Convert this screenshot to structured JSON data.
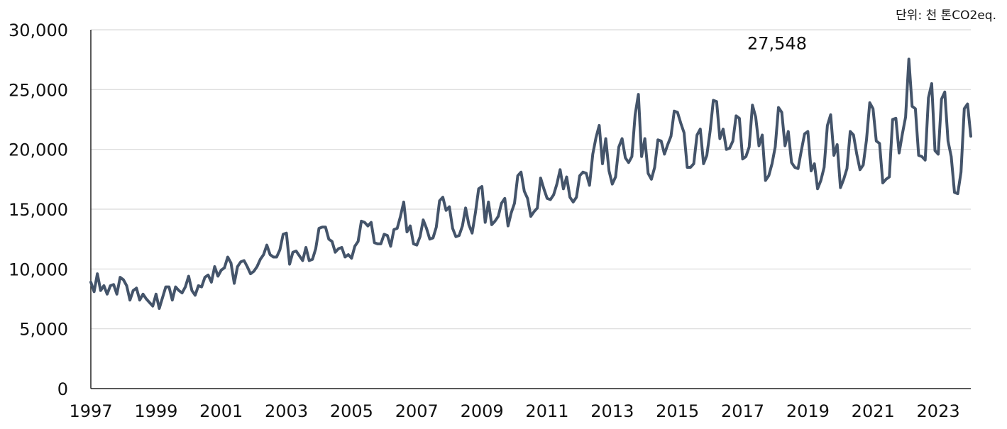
{
  "unit_text": "단위: 천 톤CO2eq.",
  "colors": {
    "line": "#44546a",
    "grid": "#d9d9d9",
    "axis": "#222222",
    "text": "#111111"
  },
  "chart_data": {
    "type": "line",
    "title": "",
    "xlabel": "",
    "ylabel": "",
    "xlim": [
      1997,
      2024
    ],
    "ylim": [
      0,
      30000
    ],
    "grid": true,
    "legend": "none",
    "y_ticks": [
      {
        "value": 0,
        "label": "0"
      },
      {
        "value": 5000,
        "label": "5,000"
      },
      {
        "value": 10000,
        "label": "10,000"
      },
      {
        "value": 15000,
        "label": "15,000"
      },
      {
        "value": 20000,
        "label": "20,000"
      },
      {
        "value": 25000,
        "label": "25,000"
      },
      {
        "value": 30000,
        "label": "30,000"
      }
    ],
    "x_ticks": [
      {
        "value": 1997,
        "label": "1997"
      },
      {
        "value": 1999,
        "label": "1999"
      },
      {
        "value": 2001,
        "label": "2001"
      },
      {
        "value": 2003,
        "label": "2003"
      },
      {
        "value": 2005,
        "label": "2005"
      },
      {
        "value": 2007,
        "label": "2007"
      },
      {
        "value": 2009,
        "label": "2009"
      },
      {
        "value": 2011,
        "label": "2011"
      },
      {
        "value": 2013,
        "label": "2013"
      },
      {
        "value": 2015,
        "label": "2015"
      },
      {
        "value": 2017,
        "label": "2017"
      },
      {
        "value": 2019,
        "label": "2019"
      },
      {
        "value": 2021,
        "label": "2021"
      },
      {
        "value": 2023,
        "label": "2023"
      }
    ],
    "annotation": {
      "x": 2018.0,
      "y": 27548,
      "label": "27,548"
    },
    "series": [
      {
        "color": "#44546a",
        "points": [
          [
            1997.0,
            8900
          ],
          [
            1997.1,
            8100
          ],
          [
            1997.2,
            9600
          ],
          [
            1997.3,
            8200
          ],
          [
            1997.4,
            8600
          ],
          [
            1997.5,
            7900
          ],
          [
            1997.6,
            8600
          ],
          [
            1997.7,
            8700
          ],
          [
            1997.8,
            7900
          ],
          [
            1997.9,
            9300
          ],
          [
            1998.0,
            9100
          ],
          [
            1998.1,
            8600
          ],
          [
            1998.2,
            7400
          ],
          [
            1998.3,
            8200
          ],
          [
            1998.4,
            8400
          ],
          [
            1998.5,
            7400
          ],
          [
            1998.6,
            7900
          ],
          [
            1998.7,
            7500
          ],
          [
            1998.8,
            7200
          ],
          [
            1998.9,
            6900
          ],
          [
            1999.0,
            7900
          ],
          [
            1999.1,
            6700
          ],
          [
            1999.2,
            7600
          ],
          [
            1999.3,
            8500
          ],
          [
            1999.4,
            8500
          ],
          [
            1999.5,
            7400
          ],
          [
            1999.6,
            8500
          ],
          [
            1999.7,
            8200
          ],
          [
            1999.8,
            8000
          ],
          [
            1999.9,
            8500
          ],
          [
            2000.0,
            9400
          ],
          [
            2000.1,
            8200
          ],
          [
            2000.2,
            7800
          ],
          [
            2000.3,
            8600
          ],
          [
            2000.4,
            8500
          ],
          [
            2000.5,
            9300
          ],
          [
            2000.6,
            9500
          ],
          [
            2000.7,
            8900
          ],
          [
            2000.8,
            10200
          ],
          [
            2000.9,
            9400
          ],
          [
            2001.0,
            9900
          ],
          [
            2001.1,
            10100
          ],
          [
            2001.2,
            11000
          ],
          [
            2001.3,
            10500
          ],
          [
            2001.4,
            8800
          ],
          [
            2001.5,
            10200
          ],
          [
            2001.6,
            10600
          ],
          [
            2001.7,
            10700
          ],
          [
            2001.8,
            10200
          ],
          [
            2001.9,
            9600
          ],
          [
            2002.0,
            9800
          ],
          [
            2002.1,
            10200
          ],
          [
            2002.2,
            10800
          ],
          [
            2002.3,
            11200
          ],
          [
            2002.4,
            12000
          ],
          [
            2002.5,
            11200
          ],
          [
            2002.6,
            11000
          ],
          [
            2002.7,
            11000
          ],
          [
            2002.8,
            11600
          ],
          [
            2002.9,
            12900
          ],
          [
            2003.0,
            13000
          ],
          [
            2003.1,
            10400
          ],
          [
            2003.2,
            11400
          ],
          [
            2003.3,
            11500
          ],
          [
            2003.4,
            11100
          ],
          [
            2003.5,
            10700
          ],
          [
            2003.6,
            11800
          ],
          [
            2003.7,
            10700
          ],
          [
            2003.8,
            10800
          ],
          [
            2003.9,
            11700
          ],
          [
            2004.0,
            13400
          ],
          [
            2004.1,
            13500
          ],
          [
            2004.2,
            13500
          ],
          [
            2004.3,
            12500
          ],
          [
            2004.4,
            12300
          ],
          [
            2004.5,
            11400
          ],
          [
            2004.6,
            11700
          ],
          [
            2004.7,
            11800
          ],
          [
            2004.8,
            11000
          ],
          [
            2004.9,
            11200
          ],
          [
            2005.0,
            10900
          ],
          [
            2005.1,
            11900
          ],
          [
            2005.2,
            12300
          ],
          [
            2005.3,
            14000
          ],
          [
            2005.4,
            13900
          ],
          [
            2005.5,
            13600
          ],
          [
            2005.6,
            13900
          ],
          [
            2005.7,
            12200
          ],
          [
            2005.8,
            12100
          ],
          [
            2005.9,
            12100
          ],
          [
            2006.0,
            12900
          ],
          [
            2006.1,
            12800
          ],
          [
            2006.2,
            11900
          ],
          [
            2006.3,
            13300
          ],
          [
            2006.4,
            13400
          ],
          [
            2006.5,
            14400
          ],
          [
            2006.6,
            15600
          ],
          [
            2006.7,
            13100
          ],
          [
            2006.8,
            13600
          ],
          [
            2006.9,
            12100
          ],
          [
            2007.0,
            12000
          ],
          [
            2007.1,
            12700
          ],
          [
            2007.2,
            14100
          ],
          [
            2007.3,
            13400
          ],
          [
            2007.4,
            12500
          ],
          [
            2007.5,
            12600
          ],
          [
            2007.6,
            13500
          ],
          [
            2007.7,
            15700
          ],
          [
            2007.8,
            16000
          ],
          [
            2007.9,
            14900
          ],
          [
            2008.0,
            15200
          ],
          [
            2008.1,
            13400
          ],
          [
            2008.2,
            12700
          ],
          [
            2008.3,
            12800
          ],
          [
            2008.4,
            13600
          ],
          [
            2008.5,
            15100
          ],
          [
            2008.6,
            13700
          ],
          [
            2008.7,
            13000
          ],
          [
            2008.8,
            14700
          ],
          [
            2008.9,
            16700
          ],
          [
            2009.0,
            16900
          ],
          [
            2009.1,
            13900
          ],
          [
            2009.2,
            15600
          ],
          [
            2009.3,
            13700
          ],
          [
            2009.4,
            14000
          ],
          [
            2009.5,
            14400
          ],
          [
            2009.6,
            15500
          ],
          [
            2009.7,
            15900
          ],
          [
            2009.8,
            13600
          ],
          [
            2009.9,
            14700
          ],
          [
            2010.0,
            15500
          ],
          [
            2010.1,
            17800
          ],
          [
            2010.2,
            18100
          ],
          [
            2010.3,
            16500
          ],
          [
            2010.4,
            15900
          ],
          [
            2010.5,
            14400
          ],
          [
            2010.6,
            14800
          ],
          [
            2010.7,
            15100
          ],
          [
            2010.8,
            17600
          ],
          [
            2010.9,
            16700
          ],
          [
            2011.0,
            15900
          ],
          [
            2011.1,
            15800
          ],
          [
            2011.2,
            16200
          ],
          [
            2011.3,
            17100
          ],
          [
            2011.4,
            18300
          ],
          [
            2011.5,
            16700
          ],
          [
            2011.6,
            17700
          ],
          [
            2011.7,
            16000
          ],
          [
            2011.8,
            15600
          ],
          [
            2011.9,
            16000
          ],
          [
            2012.0,
            17800
          ],
          [
            2012.1,
            18100
          ],
          [
            2012.2,
            18000
          ],
          [
            2012.3,
            17000
          ],
          [
            2012.4,
            19600
          ],
          [
            2012.5,
            21000
          ],
          [
            2012.6,
            22000
          ],
          [
            2012.7,
            18800
          ],
          [
            2012.8,
            20900
          ],
          [
            2012.9,
            18200
          ],
          [
            2013.0,
            17100
          ],
          [
            2013.1,
            17700
          ],
          [
            2013.2,
            20200
          ],
          [
            2013.3,
            20900
          ],
          [
            2013.4,
            19300
          ],
          [
            2013.5,
            18900
          ],
          [
            2013.6,
            19400
          ],
          [
            2013.7,
            22900
          ],
          [
            2013.8,
            24600
          ],
          [
            2013.9,
            19400
          ],
          [
            2014.0,
            20900
          ],
          [
            2014.1,
            18000
          ],
          [
            2014.2,
            17500
          ],
          [
            2014.3,
            18500
          ],
          [
            2014.4,
            20800
          ],
          [
            2014.5,
            20700
          ],
          [
            2014.6,
            19600
          ],
          [
            2014.7,
            20400
          ],
          [
            2014.8,
            21100
          ],
          [
            2014.9,
            23200
          ],
          [
            2015.0,
            23100
          ],
          [
            2015.1,
            22200
          ],
          [
            2015.2,
            21400
          ],
          [
            2015.3,
            18500
          ],
          [
            2015.4,
            18500
          ],
          [
            2015.5,
            18800
          ],
          [
            2015.6,
            21200
          ],
          [
            2015.7,
            21700
          ],
          [
            2015.8,
            18800
          ],
          [
            2015.9,
            19500
          ],
          [
            2016.0,
            21500
          ],
          [
            2016.1,
            24100
          ],
          [
            2016.2,
            24000
          ],
          [
            2016.3,
            20900
          ],
          [
            2016.4,
            21700
          ],
          [
            2016.5,
            20000
          ],
          [
            2016.6,
            20100
          ],
          [
            2016.7,
            20700
          ],
          [
            2016.8,
            22800
          ],
          [
            2016.9,
            22600
          ],
          [
            2017.0,
            19200
          ],
          [
            2017.1,
            19400
          ],
          [
            2017.2,
            20200
          ],
          [
            2017.3,
            23700
          ],
          [
            2017.4,
            22700
          ],
          [
            2017.5,
            20300
          ],
          [
            2017.6,
            21200
          ],
          [
            2017.7,
            17400
          ],
          [
            2017.8,
            17800
          ],
          [
            2017.9,
            18800
          ],
          [
            2018.0,
            20200
          ],
          [
            2018.1,
            23500
          ],
          [
            2018.2,
            23100
          ],
          [
            2018.3,
            20300
          ],
          [
            2018.4,
            21500
          ],
          [
            2018.5,
            18900
          ],
          [
            2018.6,
            18500
          ],
          [
            2018.7,
            18400
          ],
          [
            2018.8,
            19900
          ],
          [
            2018.9,
            21300
          ],
          [
            2019.0,
            21500
          ],
          [
            2019.1,
            18200
          ],
          [
            2019.2,
            18800
          ],
          [
            2019.3,
            16700
          ],
          [
            2019.4,
            17400
          ],
          [
            2019.5,
            18500
          ],
          [
            2019.6,
            22000
          ],
          [
            2019.7,
            22900
          ],
          [
            2019.8,
            19500
          ],
          [
            2019.9,
            20400
          ],
          [
            2020.0,
            16800
          ],
          [
            2020.1,
            17500
          ],
          [
            2020.2,
            18400
          ],
          [
            2020.3,
            21500
          ],
          [
            2020.4,
            21200
          ],
          [
            2020.5,
            19600
          ],
          [
            2020.6,
            18300
          ],
          [
            2020.7,
            18700
          ],
          [
            2020.8,
            20800
          ],
          [
            2020.9,
            23900
          ],
          [
            2021.0,
            23400
          ],
          [
            2021.1,
            20700
          ],
          [
            2021.2,
            20500
          ],
          [
            2021.3,
            17200
          ],
          [
            2021.4,
            17500
          ],
          [
            2021.5,
            17700
          ],
          [
            2021.6,
            22500
          ],
          [
            2021.7,
            22600
          ],
          [
            2021.8,
            19700
          ],
          [
            2021.9,
            21300
          ],
          [
            2022.0,
            22700
          ],
          [
            2022.1,
            27548
          ],
          [
            2022.2,
            23600
          ],
          [
            2022.3,
            23400
          ],
          [
            2022.4,
            19500
          ],
          [
            2022.5,
            19400
          ],
          [
            2022.6,
            19100
          ],
          [
            2022.7,
            24300
          ],
          [
            2022.8,
            25500
          ],
          [
            2022.9,
            19900
          ],
          [
            2023.0,
            19600
          ],
          [
            2023.1,
            24200
          ],
          [
            2023.2,
            24800
          ],
          [
            2023.3,
            20700
          ],
          [
            2023.4,
            19400
          ],
          [
            2023.5,
            16400
          ],
          [
            2023.6,
            16300
          ],
          [
            2023.7,
            18100
          ],
          [
            2023.8,
            23400
          ],
          [
            2023.9,
            23800
          ],
          [
            2024.0,
            21100
          ]
        ]
      }
    ]
  }
}
